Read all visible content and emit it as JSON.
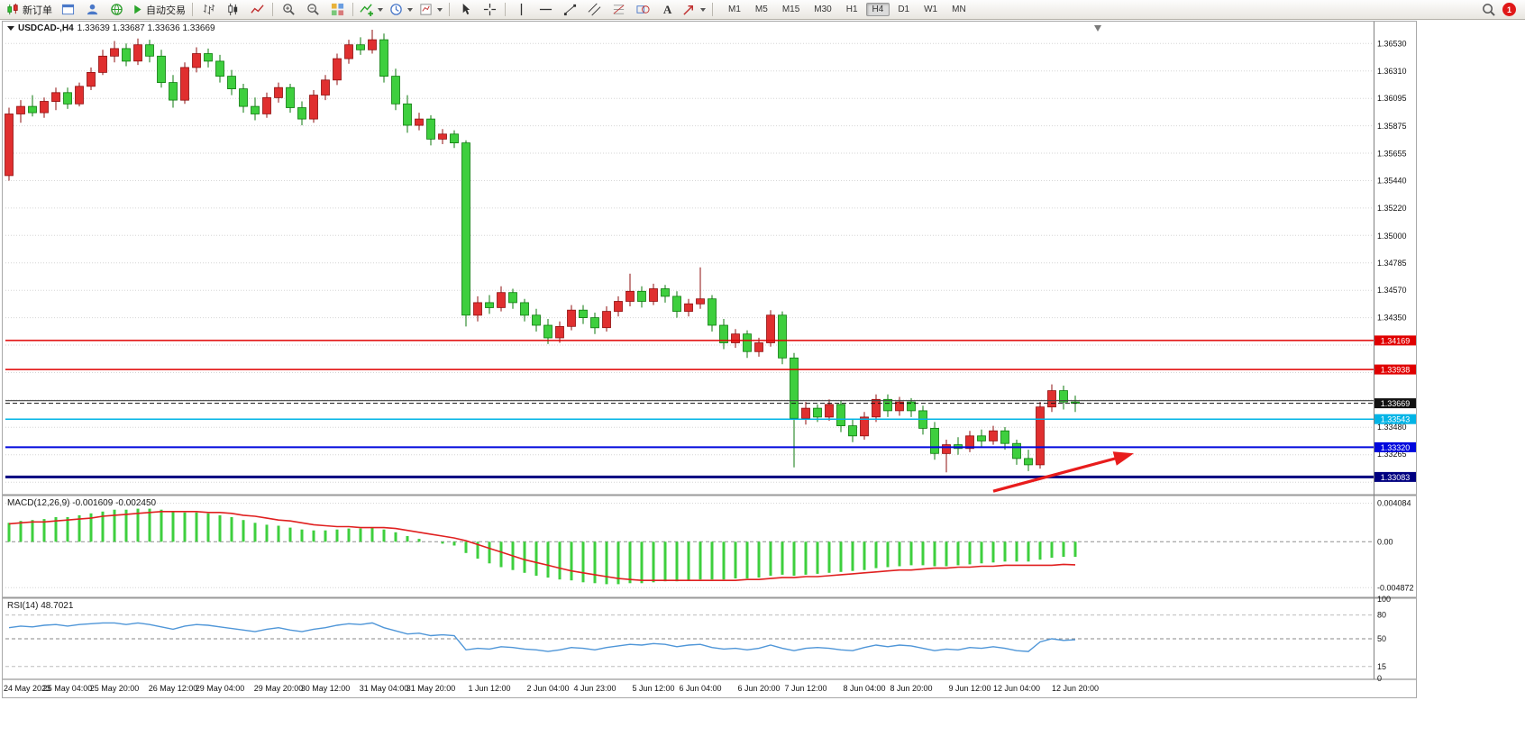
{
  "toolbar": {
    "new_order_label": "新订单",
    "autotrade_label": "自动交易",
    "timeframes": [
      "M1",
      "M5",
      "M15",
      "M30",
      "H1",
      "H4",
      "D1",
      "W1",
      "MN"
    ],
    "active_timeframe": "H4",
    "notification_count": "1"
  },
  "colors": {
    "up": "#e02f2f",
    "up_stroke": "#8f0f0f",
    "down": "#3ecf3e",
    "down_stroke": "#0d7a0d",
    "macd_hist": "#3ecf3e",
    "macd_signal": "#e02020",
    "rsi": "#4f96d8",
    "grid": "#d6d6d6",
    "axis_text": "#111111",
    "pane_border": "#9a9a9a",
    "arrow": "#e81c1c",
    "line_red": "#e00000",
    "line_cyan": "#00b4e6",
    "line_blue": "#0008dd",
    "line_navy": "#000080",
    "current_price_tag": "#111111"
  },
  "chart_data": [
    {
      "type": "candlestick",
      "title": "USDCAD-,H4",
      "ohlc_display": "1.33639 1.33687 1.33636 1.33669",
      "timeframe": "H4",
      "ylim": [
        1.3295,
        1.3669
      ],
      "y_axis_labels": [
        "1.36530",
        "1.36310",
        "1.36095",
        "1.35875",
        "1.35655",
        "1.35440",
        "1.35220",
        "1.35000",
        "1.34785",
        "1.34570",
        "1.34350",
        "1.33480",
        "1.33265"
      ],
      "x_labels": [
        "24 May 2023",
        "25 May 04:00",
        "25 May 20:00",
        "26 May 12:00",
        "29 May 04:00",
        "29 May 20:00",
        "30 May 12:00",
        "31 May 04:00",
        "31 May 20:00",
        "1 Jun 12:00",
        "2 Jun 04:00",
        "4 Jun 23:00",
        "5 Jun 12:00",
        "6 Jun 04:00",
        "6 Jun 20:00",
        "7 Jun 12:00",
        "8 Jun 04:00",
        "8 Jun 20:00",
        "9 Jun 12:00",
        "12 Jun 04:00",
        "12 Jun 20:00"
      ],
      "hlines": [
        {
          "price": 1.34169,
          "color": "#e00000",
          "width": 1.5,
          "style": "solid",
          "tag": true
        },
        {
          "price": 1.33938,
          "color": "#e00000",
          "width": 1.5,
          "style": "solid",
          "tag": true
        },
        {
          "price": 1.3369,
          "color": "#404040",
          "width": 1.2,
          "style": "solid",
          "tag": false
        },
        {
          "price": 1.33669,
          "color": "#111111",
          "width": 1,
          "style": "dash",
          "tag": true
        },
        {
          "price": 1.33543,
          "color": "#00b4e6",
          "width": 1.5,
          "style": "solid",
          "tag": true
        },
        {
          "price": 1.3332,
          "color": "#0008dd",
          "width": 2,
          "style": "solid",
          "tag": true
        },
        {
          "price": 1.33083,
          "color": "#000080",
          "width": 3,
          "style": "solid",
          "tag": true
        }
      ],
      "arrow": {
        "from_index": 84,
        "from_price": 1.3297,
        "to_index": 96,
        "to_price": 1.3327
      },
      "candles": [
        [
          1.3548,
          1.3602,
          1.3544,
          1.3597
        ],
        [
          1.3597,
          1.3608,
          1.359,
          1.3603
        ],
        [
          1.3603,
          1.3612,
          1.3595,
          1.3598
        ],
        [
          1.3598,
          1.361,
          1.3594,
          1.3607
        ],
        [
          1.3607,
          1.3618,
          1.36,
          1.3614
        ],
        [
          1.3614,
          1.3618,
          1.3601,
          1.3605
        ],
        [
          1.3605,
          1.3622,
          1.3603,
          1.3619
        ],
        [
          1.3619,
          1.3634,
          1.3616,
          1.363
        ],
        [
          1.363,
          1.3648,
          1.3628,
          1.3643
        ],
        [
          1.3643,
          1.3655,
          1.3638,
          1.3649
        ],
        [
          1.3649,
          1.3653,
          1.3635,
          1.3639
        ],
        [
          1.3639,
          1.3657,
          1.3636,
          1.3652
        ],
        [
          1.3652,
          1.3656,
          1.3638,
          1.3643
        ],
        [
          1.3643,
          1.3648,
          1.3618,
          1.3622
        ],
        [
          1.3622,
          1.3628,
          1.3602,
          1.3608
        ],
        [
          1.3608,
          1.3638,
          1.3605,
          1.3634
        ],
        [
          1.3634,
          1.365,
          1.363,
          1.3645
        ],
        [
          1.3645,
          1.3649,
          1.3634,
          1.3639
        ],
        [
          1.3639,
          1.3644,
          1.3622,
          1.3627
        ],
        [
          1.3627,
          1.3632,
          1.3612,
          1.3617
        ],
        [
          1.3617,
          1.3621,
          1.3598,
          1.3603
        ],
        [
          1.3603,
          1.361,
          1.3592,
          1.3597
        ],
        [
          1.3597,
          1.3614,
          1.3594,
          1.361
        ],
        [
          1.361,
          1.3622,
          1.3606,
          1.3618
        ],
        [
          1.3618,
          1.3621,
          1.3598,
          1.3602
        ],
        [
          1.3602,
          1.3607,
          1.3588,
          1.3593
        ],
        [
          1.3593,
          1.3616,
          1.359,
          1.3612
        ],
        [
          1.3612,
          1.3628,
          1.3608,
          1.3624
        ],
        [
          1.3624,
          1.3645,
          1.362,
          1.3641
        ],
        [
          1.3641,
          1.3656,
          1.3637,
          1.3652
        ],
        [
          1.3652,
          1.3658,
          1.3644,
          1.3648
        ],
        [
          1.3648,
          1.3664,
          1.3645,
          1.3656
        ],
        [
          1.3656,
          1.3661,
          1.3622,
          1.3627
        ],
        [
          1.3627,
          1.3633,
          1.36,
          1.3605
        ],
        [
          1.3605,
          1.3612,
          1.3582,
          1.3588
        ],
        [
          1.3588,
          1.3598,
          1.3584,
          1.3593
        ],
        [
          1.3593,
          1.3596,
          1.3572,
          1.3577
        ],
        [
          1.3577,
          1.3585,
          1.3573,
          1.3581
        ],
        [
          1.3581,
          1.3584,
          1.357,
          1.3574
        ],
        [
          1.3574,
          1.3576,
          1.3428,
          1.3437
        ],
        [
          1.3437,
          1.3452,
          1.3432,
          1.3447
        ],
        [
          1.3447,
          1.3453,
          1.3438,
          1.3443
        ],
        [
          1.3443,
          1.346,
          1.344,
          1.3455
        ],
        [
          1.3455,
          1.3458,
          1.3442,
          1.3447
        ],
        [
          1.3447,
          1.345,
          1.3432,
          1.3437
        ],
        [
          1.3437,
          1.3442,
          1.3424,
          1.3429
        ],
        [
          1.3429,
          1.3434,
          1.3414,
          1.3419
        ],
        [
          1.3419,
          1.3432,
          1.3415,
          1.3428
        ],
        [
          1.3428,
          1.3445,
          1.3425,
          1.3441
        ],
        [
          1.3441,
          1.3445,
          1.343,
          1.3435
        ],
        [
          1.3435,
          1.3439,
          1.3422,
          1.3427
        ],
        [
          1.3427,
          1.3444,
          1.3424,
          1.344
        ],
        [
          1.344,
          1.3452,
          1.3436,
          1.3448
        ],
        [
          1.3448,
          1.347,
          1.3444,
          1.3456
        ],
        [
          1.3456,
          1.346,
          1.3443,
          1.3448
        ],
        [
          1.3448,
          1.3462,
          1.3445,
          1.3458
        ],
        [
          1.3458,
          1.3461,
          1.3447,
          1.3452
        ],
        [
          1.3452,
          1.3456,
          1.3435,
          1.344
        ],
        [
          1.344,
          1.345,
          1.3436,
          1.3446
        ],
        [
          1.3446,
          1.3475,
          1.3442,
          1.345
        ],
        [
          1.345,
          1.3453,
          1.3424,
          1.3429
        ],
        [
          1.3429,
          1.3434,
          1.341,
          1.3415
        ],
        [
          1.3415,
          1.3426,
          1.3411,
          1.3422
        ],
        [
          1.3422,
          1.3425,
          1.3403,
          1.3408
        ],
        [
          1.3408,
          1.3419,
          1.3404,
          1.3415
        ],
        [
          1.3415,
          1.3441,
          1.3412,
          1.3437
        ],
        [
          1.3437,
          1.344,
          1.3398,
          1.3403
        ],
        [
          1.3403,
          1.3407,
          1.3316,
          1.3355
        ],
        [
          1.3355,
          1.3368,
          1.335,
          1.3363
        ],
        [
          1.3363,
          1.3366,
          1.3352,
          1.3356
        ],
        [
          1.3356,
          1.337,
          1.3353,
          1.3366
        ],
        [
          1.3366,
          1.3369,
          1.3344,
          1.3349
        ],
        [
          1.3349,
          1.3354,
          1.3336,
          1.3341
        ],
        [
          1.3341,
          1.336,
          1.3338,
          1.3356
        ],
        [
          1.3356,
          1.3374,
          1.3352,
          1.337
        ],
        [
          1.337,
          1.3374,
          1.3356,
          1.3361
        ],
        [
          1.3361,
          1.3372,
          1.3357,
          1.3368
        ],
        [
          1.3368,
          1.3371,
          1.3356,
          1.3361
        ],
        [
          1.3361,
          1.3365,
          1.3342,
          1.3347
        ],
        [
          1.3347,
          1.3352,
          1.3322,
          1.3327
        ],
        [
          1.3327,
          1.3338,
          1.3312,
          1.3334
        ],
        [
          1.3334,
          1.334,
          1.3326,
          1.3331
        ],
        [
          1.3331,
          1.3345,
          1.3328,
          1.3341
        ],
        [
          1.3341,
          1.3346,
          1.3332,
          1.3337
        ],
        [
          1.3337,
          1.3349,
          1.3334,
          1.3345
        ],
        [
          1.3345,
          1.3348,
          1.333,
          1.3335
        ],
        [
          1.3335,
          1.3338,
          1.3318,
          1.3323
        ],
        [
          1.3323,
          1.333,
          1.3313,
          1.3318
        ],
        [
          1.3318,
          1.3368,
          1.3315,
          1.3364
        ],
        [
          1.3364,
          1.3382,
          1.336,
          1.3377
        ],
        [
          1.3377,
          1.3381,
          1.3362,
          1.3368
        ],
        [
          1.3368,
          1.3373,
          1.336,
          1.33669
        ]
      ]
    },
    {
      "type": "bar",
      "name": "MACD",
      "label": "MACD(12,26,9) -0.001609 -0.002450",
      "y_axis_labels": [
        "0.004084",
        "0.00",
        "-0.004872"
      ],
      "ylim": [
        -0.0058,
        0.0048
      ],
      "values": [
        0.002,
        0.0022,
        0.0023,
        0.0024,
        0.0026,
        0.0026,
        0.0028,
        0.003,
        0.0032,
        0.0034,
        0.0034,
        0.0035,
        0.0035,
        0.0034,
        0.0032,
        0.0031,
        0.0031,
        0.003,
        0.0028,
        0.0026,
        0.0023,
        0.002,
        0.0018,
        0.0017,
        0.0015,
        0.0013,
        0.0012,
        0.0012,
        0.0013,
        0.0014,
        0.0014,
        0.0015,
        0.0013,
        0.001,
        0.0006,
        0.0003,
        0.0,
        -0.0002,
        -0.0004,
        -0.0012,
        -0.0018,
        -0.0023,
        -0.0027,
        -0.003,
        -0.0033,
        -0.0036,
        -0.0038,
        -0.004,
        -0.0041,
        -0.0043,
        -0.0044,
        -0.0045,
        -0.0045,
        -0.0044,
        -0.0044,
        -0.0043,
        -0.0042,
        -0.0042,
        -0.0041,
        -0.004,
        -0.004,
        -0.004,
        -0.0039,
        -0.0039,
        -0.0038,
        -0.0036,
        -0.0035,
        -0.0036,
        -0.0035,
        -0.0034,
        -0.0033,
        -0.0032,
        -0.0031,
        -0.003,
        -0.0028,
        -0.0027,
        -0.0026,
        -0.0025,
        -0.0025,
        -0.0026,
        -0.0026,
        -0.0025,
        -0.0024,
        -0.0023,
        -0.0022,
        -0.0021,
        -0.0021,
        -0.0021,
        -0.0019,
        -0.0017,
        -0.0016,
        -0.001609
      ],
      "signal": [
        0.0019,
        0.002,
        0.0021,
        0.0021,
        0.0022,
        0.0023,
        0.0024,
        0.0025,
        0.0027,
        0.0028,
        0.0029,
        0.003,
        0.0031,
        0.0032,
        0.0032,
        0.0032,
        0.0032,
        0.0031,
        0.0031,
        0.003,
        0.0028,
        0.0027,
        0.0025,
        0.0023,
        0.0022,
        0.002,
        0.0018,
        0.0017,
        0.0016,
        0.0016,
        0.0015,
        0.0015,
        0.0015,
        0.0014,
        0.0012,
        0.001,
        0.0008,
        0.0006,
        0.0004,
        0.0001,
        -0.0003,
        -0.0007,
        -0.0011,
        -0.0015,
        -0.0019,
        -0.0022,
        -0.0025,
        -0.0028,
        -0.0031,
        -0.0033,
        -0.0035,
        -0.0037,
        -0.0039,
        -0.004,
        -0.0041,
        -0.0041,
        -0.0041,
        -0.0041,
        -0.0041,
        -0.0041,
        -0.0041,
        -0.0041,
        -0.0041,
        -0.004,
        -0.004,
        -0.0039,
        -0.0038,
        -0.0038,
        -0.0037,
        -0.0037,
        -0.0036,
        -0.0035,
        -0.0034,
        -0.0033,
        -0.0032,
        -0.0031,
        -0.003,
        -0.003,
        -0.0029,
        -0.0028,
        -0.0028,
        -0.0027,
        -0.0027,
        -0.0026,
        -0.0026,
        -0.0025,
        -0.0025,
        -0.0025,
        -0.0025,
        -0.0025,
        -0.0024,
        -0.00245
      ]
    },
    {
      "type": "line",
      "name": "RSI",
      "label": "RSI(14) 48.7021",
      "y_axis_labels": [
        "100",
        "80",
        "50",
        "15",
        "0"
      ],
      "levels": [
        80,
        50,
        15
      ],
      "ylim": [
        0,
        100
      ],
      "values": [
        64,
        66,
        65,
        67,
        68,
        66,
        68,
        69,
        70,
        70,
        68,
        70,
        68,
        65,
        62,
        66,
        68,
        67,
        65,
        63,
        61,
        59,
        62,
        64,
        61,
        59,
        62,
        64,
        67,
        69,
        68,
        70,
        64,
        60,
        56,
        57,
        54,
        55,
        54,
        36,
        38,
        37,
        40,
        39,
        37,
        36,
        34,
        36,
        39,
        38,
        36,
        39,
        41,
        43,
        42,
        44,
        43,
        40,
        42,
        43,
        39,
        37,
        38,
        36,
        38,
        42,
        38,
        35,
        38,
        39,
        38,
        36,
        35,
        39,
        42,
        40,
        42,
        41,
        38,
        35,
        37,
        36,
        39,
        38,
        40,
        38,
        35,
        34,
        46,
        50,
        48,
        48.7
      ]
    }
  ]
}
